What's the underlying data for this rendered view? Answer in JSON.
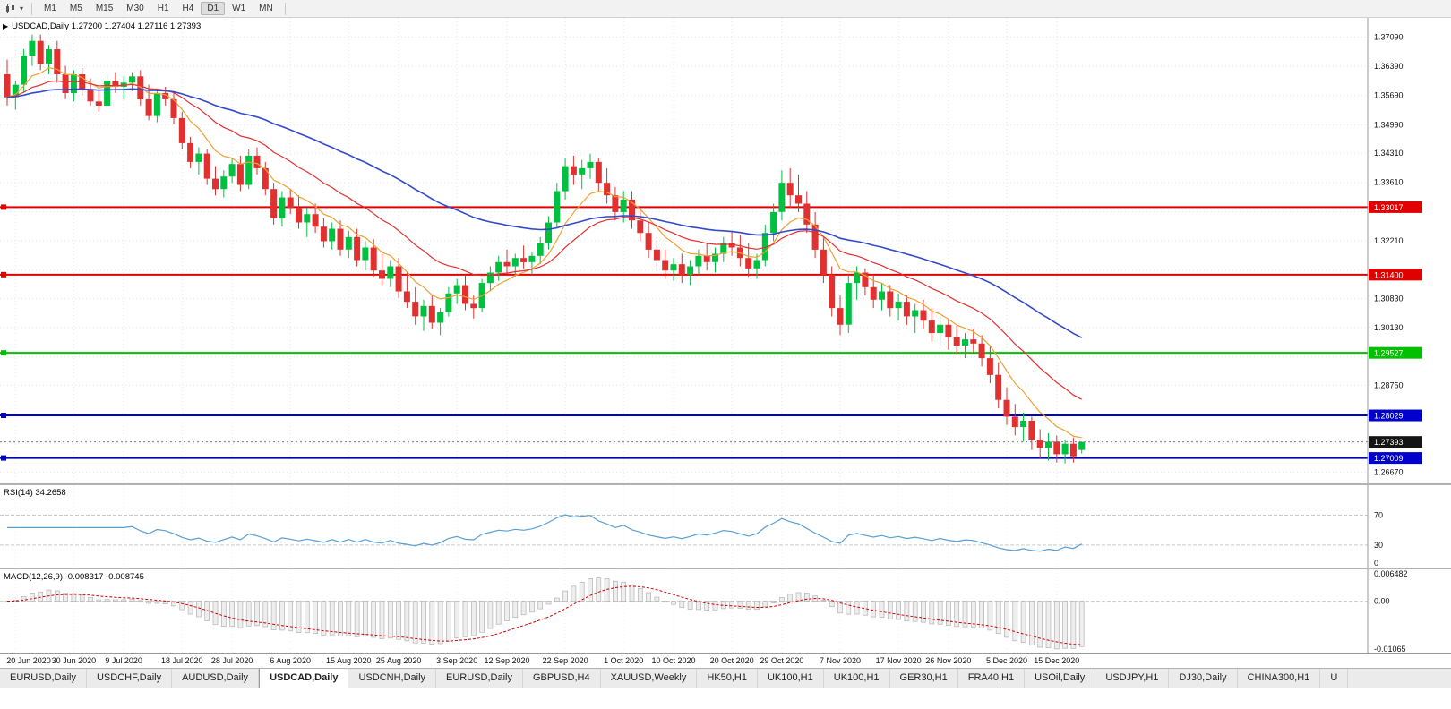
{
  "toolbar": {
    "timeframes": [
      "M1",
      "M5",
      "M15",
      "M30",
      "H1",
      "H4",
      "D1",
      "W1",
      "MN"
    ],
    "active_timeframe": "D1"
  },
  "chart": {
    "title_text": "USDCAD,Daily 1.27200 1.27404 1.27116 1.27393",
    "ylim": [
      1.264,
      1.3755
    ],
    "colors": {
      "up": "#00c040",
      "down": "#e03030",
      "ma_fast": "#efa032",
      "ma_mid": "#e03030",
      "ma_slow": "#3349cc"
    },
    "axis_labels": [
      {
        "value": 1.3709,
        "label": "1.37090"
      },
      {
        "value": 1.3639,
        "label": "1.36390"
      },
      {
        "value": 1.3569,
        "label": "1.35690"
      },
      {
        "value": 1.3499,
        "label": "1.34990"
      },
      {
        "value": 1.3431,
        "label": "1.34310"
      },
      {
        "value": 1.3361,
        "label": "1.33610"
      },
      {
        "value": 1.3221,
        "label": "1.32210"
      },
      {
        "value": 1.3083,
        "label": "1.30830"
      },
      {
        "value": 1.3013,
        "label": "1.30130"
      },
      {
        "value": 1.2875,
        "label": "1.28750"
      },
      {
        "value": 1.2667,
        "label": "1.26670"
      }
    ],
    "grid_values": [
      1.3709,
      1.3639,
      1.3569,
      1.3499,
      1.3431,
      1.3361,
      1.3291,
      1.3221,
      1.3151,
      1.3083,
      1.3013,
      1.2943,
      1.2875,
      1.2805,
      1.2735,
      1.2667
    ],
    "hlines": [
      {
        "value": 1.33017,
        "label": "1.33017",
        "color": "#e00000"
      },
      {
        "value": 1.314,
        "label": "1.31400",
        "color": "#e00000"
      },
      {
        "value": 1.29527,
        "label": "1.29527",
        "color": "#00c000"
      },
      {
        "value": 1.28029,
        "label": "1.28029",
        "color": "#0000cc"
      },
      {
        "value": 1.27009,
        "label": "1.27009",
        "color": "#0000cc"
      }
    ],
    "current_price": {
      "value": 1.27393,
      "label": "1.27393"
    },
    "date_ticks": [
      {
        "i": 1,
        "label": "20 Jun 2020"
      },
      {
        "i": 8,
        "label": "30 Jun 2020"
      },
      {
        "i": 14,
        "label": "9 Jul 2020"
      },
      {
        "i": 21,
        "label": "18 Jul 2020"
      },
      {
        "i": 27,
        "label": "28 Jul 2020"
      },
      {
        "i": 34,
        "label": "6 Aug 2020"
      },
      {
        "i": 41,
        "label": "15 Aug 2020"
      },
      {
        "i": 47,
        "label": "25 Aug 2020"
      },
      {
        "i": 54,
        "label": "3 Sep 2020"
      },
      {
        "i": 60,
        "label": "12 Sep 2020"
      },
      {
        "i": 67,
        "label": "22 Sep 2020"
      },
      {
        "i": 74,
        "label": "1 Oct 2020"
      },
      {
        "i": 80,
        "label": "10 Oct 2020"
      },
      {
        "i": 87,
        "label": "20 Oct 2020"
      },
      {
        "i": 93,
        "label": "29 Oct 2020"
      },
      {
        "i": 100,
        "label": "7 Nov 2020"
      },
      {
        "i": 107,
        "label": "17 Nov 2020"
      },
      {
        "i": 113,
        "label": "26 Nov 2020"
      },
      {
        "i": 120,
        "label": "5 Dec 2020"
      },
      {
        "i": 126,
        "label": "15 Dec 2020"
      }
    ],
    "candles": [
      [
        1.362,
        1.3655,
        1.3545,
        1.3565
      ],
      [
        1.3565,
        1.3605,
        1.3535,
        1.3595
      ],
      [
        1.3595,
        1.368,
        1.3575,
        1.3665
      ],
      [
        1.3665,
        1.3715,
        1.364,
        1.37
      ],
      [
        1.37,
        1.3715,
        1.363,
        1.3645
      ],
      [
        1.3645,
        1.369,
        1.362,
        1.368
      ],
      [
        1.368,
        1.37,
        1.36,
        1.362
      ],
      [
        1.362,
        1.364,
        1.356,
        1.3575
      ],
      [
        1.3575,
        1.363,
        1.3555,
        1.362
      ],
      [
        1.362,
        1.3635,
        1.357,
        1.3585
      ],
      [
        1.3585,
        1.361,
        1.3545,
        1.3555
      ],
      [
        1.3555,
        1.358,
        1.353,
        1.3545
      ],
      [
        1.3545,
        1.362,
        1.354,
        1.3605
      ],
      [
        1.3605,
        1.3625,
        1.3575,
        1.359
      ],
      [
        1.359,
        1.3615,
        1.356,
        1.36
      ],
      [
        1.36,
        1.3625,
        1.358,
        1.3615
      ],
      [
        1.3615,
        1.363,
        1.3545,
        1.356
      ],
      [
        1.356,
        1.3595,
        1.351,
        1.352
      ],
      [
        1.352,
        1.3585,
        1.3505,
        1.3575
      ],
      [
        1.3575,
        1.359,
        1.3545,
        1.356
      ],
      [
        1.356,
        1.3575,
        1.35,
        1.3515
      ],
      [
        1.3515,
        1.353,
        1.344,
        1.3455
      ],
      [
        1.3455,
        1.347,
        1.3395,
        1.341
      ],
      [
        1.341,
        1.3445,
        1.338,
        1.343
      ],
      [
        1.343,
        1.344,
        1.3355,
        1.337
      ],
      [
        1.337,
        1.34,
        1.333,
        1.3345
      ],
      [
        1.3345,
        1.339,
        1.3325,
        1.3375
      ],
      [
        1.3375,
        1.342,
        1.336,
        1.3405
      ],
      [
        1.3405,
        1.3425,
        1.334,
        1.3355
      ],
      [
        1.3355,
        1.344,
        1.3345,
        1.3425
      ],
      [
        1.3425,
        1.3445,
        1.338,
        1.3395
      ],
      [
        1.3395,
        1.341,
        1.333,
        1.3345
      ],
      [
        1.3345,
        1.336,
        1.326,
        1.3275
      ],
      [
        1.3275,
        1.334,
        1.3255,
        1.3325
      ],
      [
        1.3325,
        1.3345,
        1.3285,
        1.33
      ],
      [
        1.33,
        1.333,
        1.325,
        1.3265
      ],
      [
        1.3265,
        1.33,
        1.323,
        1.3285
      ],
      [
        1.3285,
        1.331,
        1.324,
        1.3255
      ],
      [
        1.3255,
        1.3275,
        1.3205,
        1.322
      ],
      [
        1.322,
        1.3265,
        1.32,
        1.325
      ],
      [
        1.325,
        1.327,
        1.3185,
        1.32
      ],
      [
        1.32,
        1.3245,
        1.318,
        1.323
      ],
      [
        1.323,
        1.325,
        1.316,
        1.3175
      ],
      [
        1.3175,
        1.322,
        1.315,
        1.3205
      ],
      [
        1.3205,
        1.3225,
        1.3135,
        1.315
      ],
      [
        1.315,
        1.319,
        1.3115,
        1.313
      ],
      [
        1.313,
        1.3175,
        1.311,
        1.316
      ],
      [
        1.316,
        1.318,
        1.3085,
        1.31
      ],
      [
        1.31,
        1.3145,
        1.306,
        1.3075
      ],
      [
        1.3075,
        1.311,
        1.302,
        1.304
      ],
      [
        1.304,
        1.308,
        1.3005,
        1.3065
      ],
      [
        1.3065,
        1.309,
        1.301,
        1.3025
      ],
      [
        1.3025,
        1.306,
        1.2995,
        1.305
      ],
      [
        1.305,
        1.311,
        1.304,
        1.3095
      ],
      [
        1.3095,
        1.313,
        1.307,
        1.3115
      ],
      [
        1.3115,
        1.314,
        1.3055,
        1.307
      ],
      [
        1.307,
        1.309,
        1.3035,
        1.306
      ],
      [
        1.306,
        1.313,
        1.305,
        1.312
      ],
      [
        1.312,
        1.316,
        1.31,
        1.3145
      ],
      [
        1.3145,
        1.3185,
        1.3125,
        1.317
      ],
      [
        1.317,
        1.32,
        1.314,
        1.316
      ],
      [
        1.316,
        1.319,
        1.3135,
        1.318
      ],
      [
        1.318,
        1.321,
        1.3155,
        1.317
      ],
      [
        1.317,
        1.3195,
        1.314,
        1.3185
      ],
      [
        1.3185,
        1.323,
        1.3165,
        1.3215
      ],
      [
        1.3215,
        1.328,
        1.32,
        1.3265
      ],
      [
        1.3265,
        1.336,
        1.325,
        1.334
      ],
      [
        1.334,
        1.342,
        1.332,
        1.34
      ],
      [
        1.34,
        1.3425,
        1.3355,
        1.338
      ],
      [
        1.338,
        1.3415,
        1.3345,
        1.3395
      ],
      [
        1.3395,
        1.343,
        1.337,
        1.341
      ],
      [
        1.341,
        1.342,
        1.334,
        1.336
      ],
      [
        1.336,
        1.3395,
        1.331,
        1.333
      ],
      [
        1.333,
        1.335,
        1.327,
        1.329
      ],
      [
        1.329,
        1.334,
        1.3265,
        1.332
      ],
      [
        1.332,
        1.334,
        1.325,
        1.327
      ],
      [
        1.327,
        1.33,
        1.322,
        1.324
      ],
      [
        1.324,
        1.3265,
        1.318,
        1.32
      ],
      [
        1.32,
        1.323,
        1.3155,
        1.3175
      ],
      [
        1.3175,
        1.32,
        1.313,
        1.315
      ],
      [
        1.315,
        1.318,
        1.3125,
        1.3165
      ],
      [
        1.3165,
        1.319,
        1.312,
        1.314
      ],
      [
        1.314,
        1.3175,
        1.3115,
        1.316
      ],
      [
        1.316,
        1.32,
        1.314,
        1.3185
      ],
      [
        1.3185,
        1.3215,
        1.315,
        1.317
      ],
      [
        1.317,
        1.3205,
        1.3145,
        1.319
      ],
      [
        1.319,
        1.323,
        1.317,
        1.3215
      ],
      [
        1.3215,
        1.3245,
        1.3185,
        1.3205
      ],
      [
        1.3205,
        1.3235,
        1.316,
        1.318
      ],
      [
        1.318,
        1.3215,
        1.3135,
        1.3155
      ],
      [
        1.3155,
        1.319,
        1.313,
        1.3175
      ],
      [
        1.3175,
        1.326,
        1.316,
        1.324
      ],
      [
        1.324,
        1.331,
        1.322,
        1.329
      ],
      [
        1.329,
        1.339,
        1.327,
        1.336
      ],
      [
        1.336,
        1.3395,
        1.33,
        1.333
      ],
      [
        1.333,
        1.338,
        1.329,
        1.331
      ],
      [
        1.331,
        1.334,
        1.324,
        1.326
      ],
      [
        1.326,
        1.329,
        1.318,
        1.32
      ],
      [
        1.32,
        1.323,
        1.312,
        1.314
      ],
      [
        1.314,
        1.316,
        1.304,
        1.306
      ],
      [
        1.306,
        1.309,
        1.2995,
        1.302
      ],
      [
        1.302,
        1.314,
        1.3,
        1.312
      ],
      [
        1.312,
        1.316,
        1.308,
        1.3145
      ],
      [
        1.3145,
        1.3155,
        1.309,
        1.311
      ],
      [
        1.311,
        1.314,
        1.306,
        1.308
      ],
      [
        1.308,
        1.312,
        1.3055,
        1.31
      ],
      [
        1.31,
        1.3115,
        1.304,
        1.306
      ],
      [
        1.306,
        1.3095,
        1.303,
        1.3075
      ],
      [
        1.3075,
        1.309,
        1.302,
        1.304
      ],
      [
        1.304,
        1.307,
        1.3,
        1.3055
      ],
      [
        1.3055,
        1.308,
        1.301,
        1.303
      ],
      [
        1.303,
        1.306,
        1.298,
        1.3
      ],
      [
        1.3,
        1.304,
        1.297,
        1.302
      ],
      [
        1.302,
        1.3035,
        1.296,
        1.299
      ],
      [
        1.299,
        1.302,
        1.295,
        1.297
      ],
      [
        1.297,
        1.3,
        1.294,
        1.2985
      ],
      [
        1.2985,
        1.301,
        1.2955,
        1.2975
      ],
      [
        1.2975,
        1.2995,
        1.292,
        1.294
      ],
      [
        1.294,
        1.297,
        1.288,
        1.29
      ],
      [
        1.29,
        1.293,
        1.282,
        1.284
      ],
      [
        1.284,
        1.287,
        1.278,
        1.28
      ],
      [
        1.28,
        1.283,
        1.2755,
        1.2775
      ],
      [
        1.2775,
        1.281,
        1.274,
        1.279
      ],
      [
        1.279,
        1.28,
        1.272,
        1.2745
      ],
      [
        1.2745,
        1.277,
        1.27,
        1.2725
      ],
      [
        1.2725,
        1.276,
        1.2695,
        1.274
      ],
      [
        1.274,
        1.2755,
        1.269,
        1.271
      ],
      [
        1.271,
        1.2745,
        1.2688,
        1.2735
      ],
      [
        1.2735,
        1.275,
        1.269,
        1.2705
      ],
      [
        1.272,
        1.27404,
        1.27116,
        1.27393
      ]
    ]
  },
  "rsi": {
    "label": "RSI(14) 34.2658",
    "color": "#5a9fd4",
    "levels": [
      70,
      30
    ],
    "axis_labels": [
      {
        "value": 70,
        "label": "70"
      },
      {
        "value": 30,
        "label": "30"
      },
      {
        "value": 0,
        "label": "0"
      }
    ]
  },
  "macd": {
    "label": "MACD(12,26,9) -0.008317 -0.008745",
    "signal_color": "#d00000",
    "ylim": [
      -0.0115,
      0.007
    ],
    "axis_labels": [
      {
        "value": 0.006482,
        "label": "0.006482"
      },
      {
        "value": 0,
        "label": "0.00"
      },
      {
        "value": -0.01065,
        "label": "-0.01065"
      }
    ]
  },
  "tabs": [
    "EURUSD,Daily",
    "USDCHF,Daily",
    "AUDUSD,Daily",
    "USDCAD,Daily",
    "USDCNH,Daily",
    "EURUSD,Daily",
    "GBPUSD,H4",
    "XAUUSD,Weekly",
    "HK50,H1",
    "UK100,H1",
    "UK100,H1",
    "GER30,H1",
    "FRA40,H1",
    "USOil,Daily",
    "USDJPY,H1",
    "DJ30,Daily",
    "CHINA300,H1",
    "U"
  ],
  "active_tab_index": 3
}
